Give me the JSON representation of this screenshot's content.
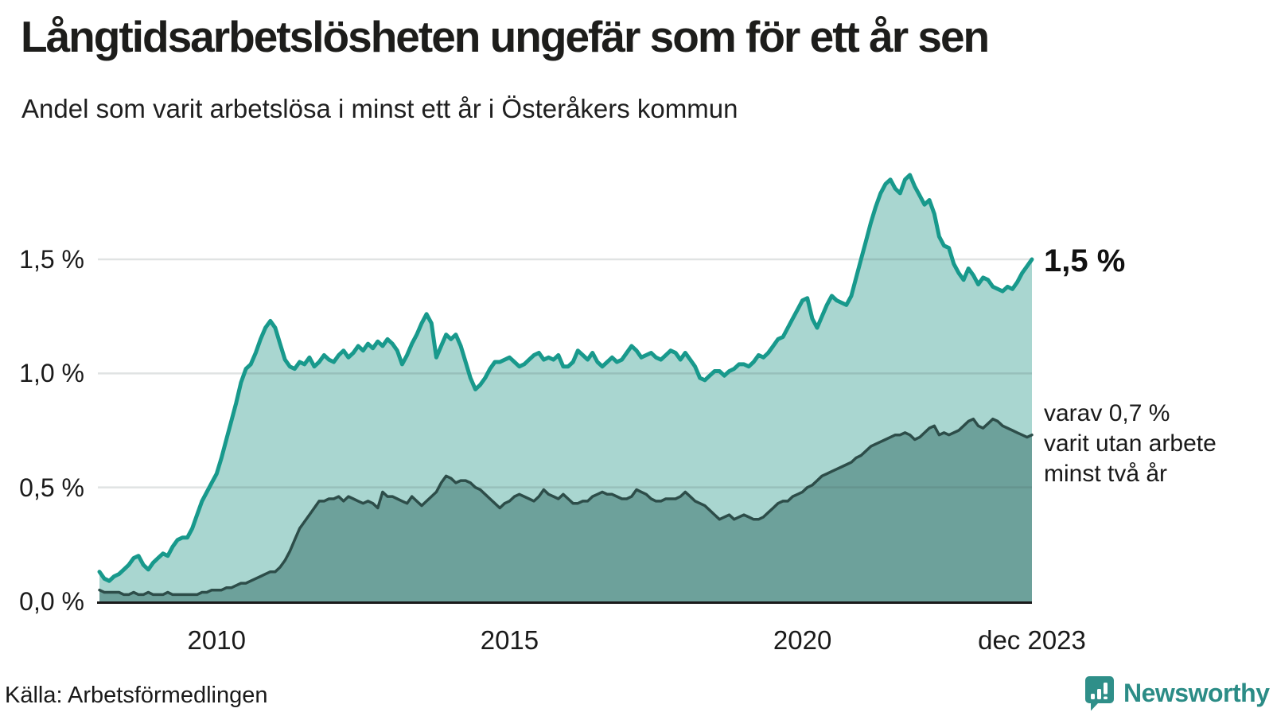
{
  "header": {
    "title": "Långtidsarbetslösheten ungefär som för ett år sen",
    "subtitle": "Andel som varit arbetslösa i minst ett år i Österåkers kommun"
  },
  "annotations": {
    "current": "1,5 %",
    "secondary_lines": [
      "varav 0,7 %",
      "varit utan arbete",
      "minst två år"
    ]
  },
  "footer": {
    "source": "Källa: Arbetsförmedlingen",
    "brand": "Newsworthy"
  },
  "colors": {
    "accent_teal": "#18998c",
    "area_light": "#a9d6d0",
    "area_dark": "#6da19b",
    "line_dark": "#2d4d49",
    "grid_overlay": "rgba(60,80,80,0.16)",
    "axis": "#1a1a1a",
    "text": "#1a1a1a",
    "brand_teal": "#2f8f89"
  },
  "chart_data": {
    "type": "area",
    "title": "Långtidsarbetslösheten ungefär som för ett år sen",
    "subtitle": "Andel som varit arbetslösa i minst ett år i Österåkers kommun",
    "unit": "%",
    "frequency": "monthly",
    "x_start_year": 2008.0,
    "x_end_year": 2023.9167,
    "ylim": [
      0,
      1.9
    ],
    "grid": "horizontal",
    "legend_position": "none",
    "yticks": [
      {
        "value": 0.0,
        "label": "0,0 %"
      },
      {
        "value": 0.5,
        "label": "0,5 %"
      },
      {
        "value": 1.0,
        "label": "1,0 %"
      },
      {
        "value": 1.5,
        "label": "1,5 %"
      }
    ],
    "xticks": [
      {
        "year": 2010.0,
        "label": "2010"
      },
      {
        "year": 2015.0,
        "label": "2015"
      },
      {
        "year": 2020.0,
        "label": "2020"
      },
      {
        "year": 2023.9167,
        "label": "dec 2023"
      }
    ],
    "series": [
      {
        "name": "Andel arbetslösa minst ett år",
        "latest_value_label": "1,5 %",
        "color_key": "accent_teal",
        "fill_key": "area_light",
        "values": [
          0.13,
          0.1,
          0.09,
          0.11,
          0.12,
          0.14,
          0.16,
          0.19,
          0.2,
          0.16,
          0.14,
          0.17,
          0.19,
          0.21,
          0.2,
          0.24,
          0.27,
          0.28,
          0.28,
          0.32,
          0.38,
          0.44,
          0.48,
          0.52,
          0.56,
          0.63,
          0.71,
          0.79,
          0.87,
          0.96,
          1.02,
          1.04,
          1.09,
          1.15,
          1.2,
          1.23,
          1.2,
          1.13,
          1.06,
          1.03,
          1.02,
          1.05,
          1.04,
          1.07,
          1.03,
          1.05,
          1.08,
          1.06,
          1.05,
          1.08,
          1.1,
          1.07,
          1.09,
          1.12,
          1.1,
          1.13,
          1.11,
          1.14,
          1.12,
          1.15,
          1.13,
          1.1,
          1.04,
          1.08,
          1.13,
          1.17,
          1.22,
          1.26,
          1.22,
          1.07,
          1.12,
          1.17,
          1.15,
          1.17,
          1.12,
          1.05,
          0.98,
          0.93,
          0.95,
          0.98,
          1.02,
          1.05,
          1.05,
          1.06,
          1.07,
          1.05,
          1.03,
          1.04,
          1.06,
          1.08,
          1.09,
          1.06,
          1.07,
          1.06,
          1.08,
          1.03,
          1.03,
          1.05,
          1.1,
          1.08,
          1.06,
          1.09,
          1.05,
          1.03,
          1.05,
          1.07,
          1.05,
          1.06,
          1.09,
          1.12,
          1.1,
          1.07,
          1.08,
          1.09,
          1.07,
          1.06,
          1.08,
          1.1,
          1.09,
          1.06,
          1.09,
          1.06,
          1.03,
          0.98,
          0.97,
          0.99,
          1.01,
          1.01,
          0.99,
          1.01,
          1.02,
          1.04,
          1.04,
          1.03,
          1.05,
          1.08,
          1.07,
          1.09,
          1.12,
          1.15,
          1.16,
          1.2,
          1.24,
          1.28,
          1.32,
          1.33,
          1.24,
          1.2,
          1.25,
          1.3,
          1.34,
          1.32,
          1.31,
          1.3,
          1.34,
          1.42,
          1.5,
          1.58,
          1.66,
          1.73,
          1.79,
          1.83,
          1.85,
          1.81,
          1.79,
          1.85,
          1.87,
          1.82,
          1.78,
          1.74,
          1.76,
          1.7,
          1.6,
          1.56,
          1.55,
          1.48,
          1.44,
          1.41,
          1.46,
          1.43,
          1.39,
          1.42,
          1.41,
          1.38,
          1.37,
          1.36,
          1.38,
          1.37,
          1.4,
          1.44,
          1.47,
          1.5
        ]
      },
      {
        "name": "Andel arbetslösa minst två år",
        "latest_value_label": "0,7 %",
        "color_key": "line_dark",
        "fill_key": "area_dark",
        "values": [
          0.05,
          0.04,
          0.04,
          0.04,
          0.04,
          0.03,
          0.03,
          0.04,
          0.03,
          0.03,
          0.04,
          0.03,
          0.03,
          0.03,
          0.04,
          0.03,
          0.03,
          0.03,
          0.03,
          0.03,
          0.03,
          0.04,
          0.04,
          0.05,
          0.05,
          0.05,
          0.06,
          0.06,
          0.07,
          0.08,
          0.08,
          0.09,
          0.1,
          0.11,
          0.12,
          0.13,
          0.13,
          0.15,
          0.18,
          0.22,
          0.27,
          0.32,
          0.35,
          0.38,
          0.41,
          0.44,
          0.44,
          0.45,
          0.45,
          0.46,
          0.44,
          0.46,
          0.45,
          0.44,
          0.43,
          0.44,
          0.43,
          0.41,
          0.48,
          0.46,
          0.46,
          0.45,
          0.44,
          0.43,
          0.46,
          0.44,
          0.42,
          0.44,
          0.46,
          0.48,
          0.52,
          0.55,
          0.54,
          0.52,
          0.53,
          0.53,
          0.52,
          0.5,
          0.49,
          0.47,
          0.45,
          0.43,
          0.41,
          0.43,
          0.44,
          0.46,
          0.47,
          0.46,
          0.45,
          0.44,
          0.46,
          0.49,
          0.47,
          0.46,
          0.45,
          0.47,
          0.45,
          0.43,
          0.43,
          0.44,
          0.44,
          0.46,
          0.47,
          0.48,
          0.47,
          0.47,
          0.46,
          0.45,
          0.45,
          0.46,
          0.49,
          0.48,
          0.47,
          0.45,
          0.44,
          0.44,
          0.45,
          0.45,
          0.45,
          0.46,
          0.48,
          0.46,
          0.44,
          0.43,
          0.42,
          0.4,
          0.38,
          0.36,
          0.37,
          0.38,
          0.36,
          0.37,
          0.38,
          0.37,
          0.36,
          0.36,
          0.37,
          0.39,
          0.41,
          0.43,
          0.44,
          0.44,
          0.46,
          0.47,
          0.48,
          0.5,
          0.51,
          0.53,
          0.55,
          0.56,
          0.57,
          0.58,
          0.59,
          0.6,
          0.61,
          0.63,
          0.64,
          0.66,
          0.68,
          0.69,
          0.7,
          0.71,
          0.72,
          0.73,
          0.73,
          0.74,
          0.73,
          0.71,
          0.72,
          0.74,
          0.76,
          0.77,
          0.73,
          0.74,
          0.73,
          0.74,
          0.75,
          0.77,
          0.79,
          0.8,
          0.77,
          0.76,
          0.78,
          0.8,
          0.79,
          0.77,
          0.76,
          0.75,
          0.74,
          0.73,
          0.72,
          0.73
        ]
      }
    ]
  }
}
